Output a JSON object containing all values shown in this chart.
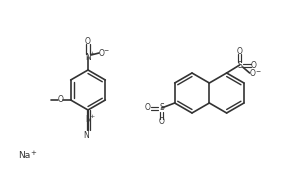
{
  "background_color": "#ffffff",
  "line_color": "#333333",
  "text_color": "#333333",
  "figsize": [
    2.98,
    1.78
  ],
  "dpi": 100,
  "na_label": "Na",
  "na_charge": "+",
  "nitro_N": "+",
  "nitro_O1": "O",
  "nitro_O2": "O",
  "methoxy": "O",
  "diazo_charge": "+",
  "sulfo_S": "S",
  "sulfo_O": "O"
}
